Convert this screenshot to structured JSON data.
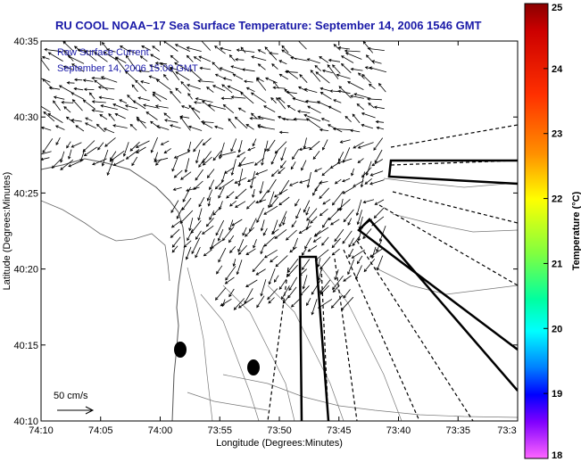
{
  "title": "RU COOL  NOAA−17  Sea Surface Temperature:  September 14, 2006 1546 GMT",
  "overlay": {
    "line1": "Raw Surface Current",
    "line2": "September 14, 2006 15:00 GMT"
  },
  "axes": {
    "xlabel": "Longitude (Degrees:Minutes)",
    "ylabel": "Latitude (Degrees:Minutes)",
    "xticks": [
      "74:10",
      "74:05",
      "74:00",
      "73:55",
      "73:50",
      "73:45",
      "73:40",
      "73:35",
      "73:3"
    ],
    "yticks": [
      "40:35",
      "40:30",
      "40:25",
      "40:20",
      "40:15",
      "40:10"
    ]
  },
  "scale": {
    "label": "50 cm/s"
  },
  "colorbar": {
    "label": "Temperature (°C)",
    "ticks": [
      "25",
      "24",
      "23",
      "22",
      "21",
      "20",
      "19",
      "18"
    ],
    "colors": [
      "#8a0000",
      "#ff0000",
      "#ff8000",
      "#ffff00",
      "#00ff66",
      "#00ffff",
      "#0000ff",
      "#ff66ff"
    ]
  }
}
